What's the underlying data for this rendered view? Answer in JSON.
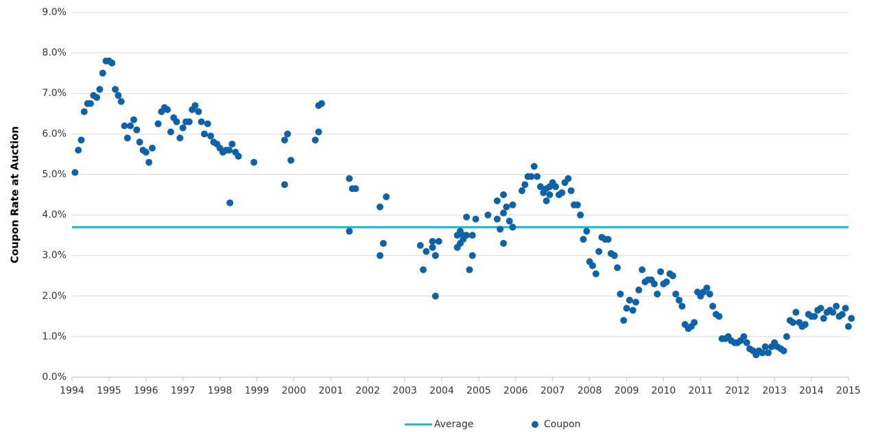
{
  "chart_data": {
    "type": "scatter",
    "ylabel": "Coupon Rate at Auction",
    "xlim": [
      1994,
      2015
    ],
    "xticks": [
      1994,
      1995,
      1996,
      1997,
      1998,
      1999,
      2000,
      2001,
      2002,
      2003,
      2004,
      2005,
      2006,
      2007,
      2008,
      2009,
      2010,
      2011,
      2012,
      2013,
      2014,
      2015
    ],
    "ylim": [
      0,
      9
    ],
    "yticks": [
      {
        "value": 0,
        "label": "0.0%"
      },
      {
        "value": 1,
        "label": "1.0%"
      },
      {
        "value": 2,
        "label": "2.0%"
      },
      {
        "value": 3,
        "label": "3.0%"
      },
      {
        "value": 4,
        "label": "4.0%"
      },
      {
        "value": 5,
        "label": "5.0%"
      },
      {
        "value": 6,
        "label": "6.0%"
      },
      {
        "value": 7,
        "label": "7.0%"
      },
      {
        "value": 8,
        "label": "8.0%"
      },
      {
        "value": 9,
        "label": "9.0%"
      }
    ],
    "grid": true,
    "legend": "bottom",
    "series": [
      {
        "name": "Average",
        "type": "line",
        "color": "#1cb5c9",
        "x": [
          1994,
          2015
        ],
        "values": [
          3.7,
          3.7
        ]
      },
      {
        "name": "Coupon",
        "type": "scatter",
        "color": "#0e63a8",
        "x": [
          1994.08,
          1994.17,
          1994.25,
          1994.33,
          1994.42,
          1994.5,
          1994.58,
          1994.67,
          1994.75,
          1994.83,
          1994.92,
          1995.0,
          1995.08,
          1995.17,
          1995.25,
          1995.33,
          1995.42,
          1995.5,
          1995.58,
          1995.67,
          1995.75,
          1995.83,
          1995.92,
          1996.0,
          1996.08,
          1996.17,
          1996.33,
          1996.42,
          1996.5,
          1996.58,
          1996.67,
          1996.75,
          1996.83,
          1996.92,
          1997.0,
          1997.08,
          1997.17,
          1997.25,
          1997.33,
          1997.42,
          1997.5,
          1997.58,
          1997.67,
          1997.75,
          1997.83,
          1997.92,
          1998.0,
          1998.08,
          1998.17,
          1998.25,
          1998.27,
          1998.33,
          1998.42,
          1998.5,
          1998.92,
          1999.75,
          1999.75,
          1999.83,
          1999.92,
          2000.58,
          2000.67,
          2000.67,
          2000.75,
          2001.5,
          2001.5,
          2001.58,
          2001.67,
          2002.33,
          2002.33,
          2002.42,
          2002.5,
          2003.42,
          2003.5,
          2003.58,
          2003.75,
          2003.75,
          2003.83,
          2003.83,
          2003.92,
          2004.42,
          2004.42,
          2004.5,
          2004.5,
          2004.58,
          2004.58,
          2004.67,
          2004.67,
          2004.75,
          2004.83,
          2004.83,
          2004.92,
          2005.25,
          2005.5,
          2005.5,
          2005.58,
          2005.67,
          2005.67,
          2005.67,
          2005.75,
          2005.83,
          2005.92,
          2005.92,
          2006.17,
          2006.25,
          2006.33,
          2006.42,
          2006.5,
          2006.58,
          2006.67,
          2006.75,
          2006.83,
          2006.83,
          2006.92,
          2006.92,
          2007.0,
          2007.08,
          2007.17,
          2007.25,
          2007.33,
          2007.42,
          2007.5,
          2007.58,
          2007.67,
          2007.75,
          2007.83,
          2007.92,
          2008.0,
          2008.08,
          2008.17,
          2008.25,
          2008.33,
          2008.42,
          2008.5,
          2008.58,
          2008.67,
          2008.75,
          2008.83,
          2008.92,
          2009.0,
          2009.08,
          2009.17,
          2009.25,
          2009.33,
          2009.42,
          2009.5,
          2009.58,
          2009.67,
          2009.75,
          2009.83,
          2009.92,
          2010.0,
          2010.08,
          2010.17,
          2010.25,
          2010.33,
          2010.42,
          2010.5,
          2010.58,
          2010.67,
          2010.75,
          2010.83,
          2010.92,
          2011.0,
          2011.08,
          2011.17,
          2011.25,
          2011.33,
          2011.42,
          2011.5,
          2011.58,
          2011.67,
          2011.75,
          2011.83,
          2011.92,
          2012.0,
          2012.08,
          2012.17,
          2012.25,
          2012.33,
          2012.42,
          2012.5,
          2012.58,
          2012.67,
          2012.75,
          2012.83,
          2012.92,
          2013.0,
          2013.08,
          2013.17,
          2013.25,
          2013.33,
          2013.42,
          2013.5,
          2013.58,
          2013.67,
          2013.75,
          2013.83,
          2013.92,
          2014.0,
          2014.08,
          2014.17,
          2014.25,
          2014.33,
          2014.42,
          2014.5,
          2014.58,
          2014.67,
          2014.75,
          2014.83,
          2014.92,
          2015.0,
          2015.08
        ],
        "values": [
          5.05,
          5.6,
          5.85,
          6.55,
          6.75,
          6.75,
          6.95,
          6.9,
          7.1,
          7.5,
          7.8,
          7.8,
          7.75,
          7.1,
          6.95,
          6.8,
          6.2,
          5.9,
          6.2,
          6.35,
          6.1,
          5.8,
          5.6,
          5.55,
          5.3,
          5.65,
          6.25,
          6.55,
          6.65,
          6.6,
          6.05,
          6.4,
          6.3,
          5.9,
          6.15,
          6.3,
          6.3,
          6.6,
          6.7,
          6.55,
          6.3,
          6.0,
          6.25,
          5.95,
          5.8,
          5.75,
          5.65,
          5.55,
          5.6,
          5.6,
          4.3,
          5.75,
          5.55,
          5.45,
          5.3,
          4.75,
          5.85,
          6.0,
          5.35,
          5.85,
          6.05,
          6.7,
          6.75,
          4.9,
          3.6,
          4.65,
          4.65,
          4.2,
          3.0,
          3.3,
          4.45,
          3.25,
          2.65,
          3.1,
          3.2,
          3.35,
          3.0,
          2.0,
          3.35,
          3.2,
          3.5,
          3.6,
          3.3,
          3.5,
          3.4,
          3.95,
          3.5,
          2.65,
          3.5,
          3.0,
          3.9,
          4.0,
          4.35,
          3.9,
          3.65,
          4.5,
          3.3,
          4.05,
          4.2,
          3.85,
          4.25,
          3.7,
          4.6,
          4.75,
          4.95,
          4.95,
          5.2,
          4.95,
          4.7,
          4.55,
          4.65,
          4.35,
          4.5,
          4.7,
          4.8,
          4.7,
          4.5,
          4.55,
          4.8,
          4.9,
          4.6,
          4.25,
          4.25,
          4.0,
          3.4,
          3.6,
          2.85,
          2.75,
          2.55,
          3.1,
          3.45,
          3.4,
          3.4,
          3.05,
          3.0,
          2.7,
          2.05,
          1.4,
          1.7,
          1.9,
          1.65,
          1.85,
          2.15,
          2.65,
          2.35,
          2.4,
          2.4,
          2.3,
          2.05,
          2.6,
          2.3,
          2.35,
          2.55,
          2.5,
          2.05,
          1.9,
          1.75,
          1.3,
          1.2,
          1.25,
          1.35,
          2.1,
          2.0,
          2.1,
          2.2,
          2.05,
          1.75,
          1.55,
          1.5,
          0.95,
          0.95,
          1.0,
          0.9,
          0.85,
          0.85,
          0.9,
          1.0,
          0.85,
          0.7,
          0.65,
          0.55,
          0.65,
          0.6,
          0.75,
          0.6,
          0.75,
          0.85,
          0.75,
          0.7,
          0.65,
          1.0,
          1.4,
          1.35,
          1.6,
          1.35,
          1.25,
          1.3,
          1.55,
          1.5,
          1.5,
          1.65,
          1.7,
          1.45,
          1.6,
          1.65,
          1.6,
          1.75,
          1.5,
          1.55,
          1.7,
          1.25,
          1.45
        ]
      }
    ]
  }
}
